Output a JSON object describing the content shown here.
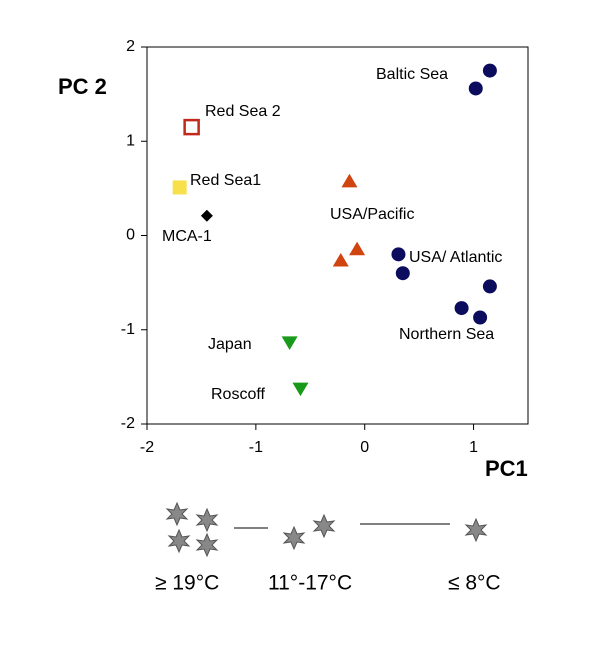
{
  "chart_data": {
    "type": "scatter",
    "x_label": "PC1",
    "y_label": "PC 2",
    "xlim": [
      -2,
      1.5
    ],
    "ylim": [
      -2,
      2
    ],
    "xticks": [
      -2,
      -1,
      0,
      1
    ],
    "yticks": [
      -2,
      -1,
      0,
      1,
      2
    ],
    "grid": false,
    "series": [
      {
        "name": "Baltic Sea",
        "color": "#0c0c5e",
        "marker": "circle",
        "x": [
          1.02,
          1.15
        ],
        "y": [
          1.56,
          1.75
        ]
      },
      {
        "name": "Red Sea 2",
        "color": "#c0281e",
        "marker": "open-square",
        "x": [
          -1.59
        ],
        "y": [
          1.15
        ]
      },
      {
        "name": "Red Sea1",
        "color": "#f7e04a",
        "marker": "square",
        "x": [
          -1.7
        ],
        "y": [
          0.51
        ]
      },
      {
        "name": "MCA-1",
        "color": "#000000",
        "marker": "diamond",
        "x": [
          -1.45
        ],
        "y": [
          0.21
        ]
      },
      {
        "name": "USA/Pacific",
        "color": "#d04410",
        "marker": "triangle-up",
        "x": [
          -0.14,
          -0.07,
          -0.22
        ],
        "y": [
          0.57,
          -0.15,
          -0.27
        ]
      },
      {
        "name": "USA/ Atlantic",
        "color": "#0c0c5e",
        "marker": "circle",
        "x": [
          0.31,
          0.35
        ],
        "y": [
          -0.2,
          -0.4
        ]
      },
      {
        "name": "Northern Sea",
        "color": "#0c0c5e",
        "marker": "circle",
        "x": [
          1.15,
          0.89,
          1.06
        ],
        "y": [
          -0.54,
          -0.77,
          -0.87
        ]
      },
      {
        "name": "Japan",
        "color": "#1a9a1a",
        "marker": "triangle-down",
        "x": [
          -0.69
        ],
        "y": [
          -1.13
        ]
      },
      {
        "name": "Roscoff",
        "color": "#1a9a1a",
        "marker": "triangle-down",
        "x": [
          -0.59
        ],
        "y": [
          -1.62
        ]
      }
    ],
    "temperature_scale": [
      "≥ 19°C",
      "11°-17°C",
      "≤ 8°C"
    ]
  }
}
